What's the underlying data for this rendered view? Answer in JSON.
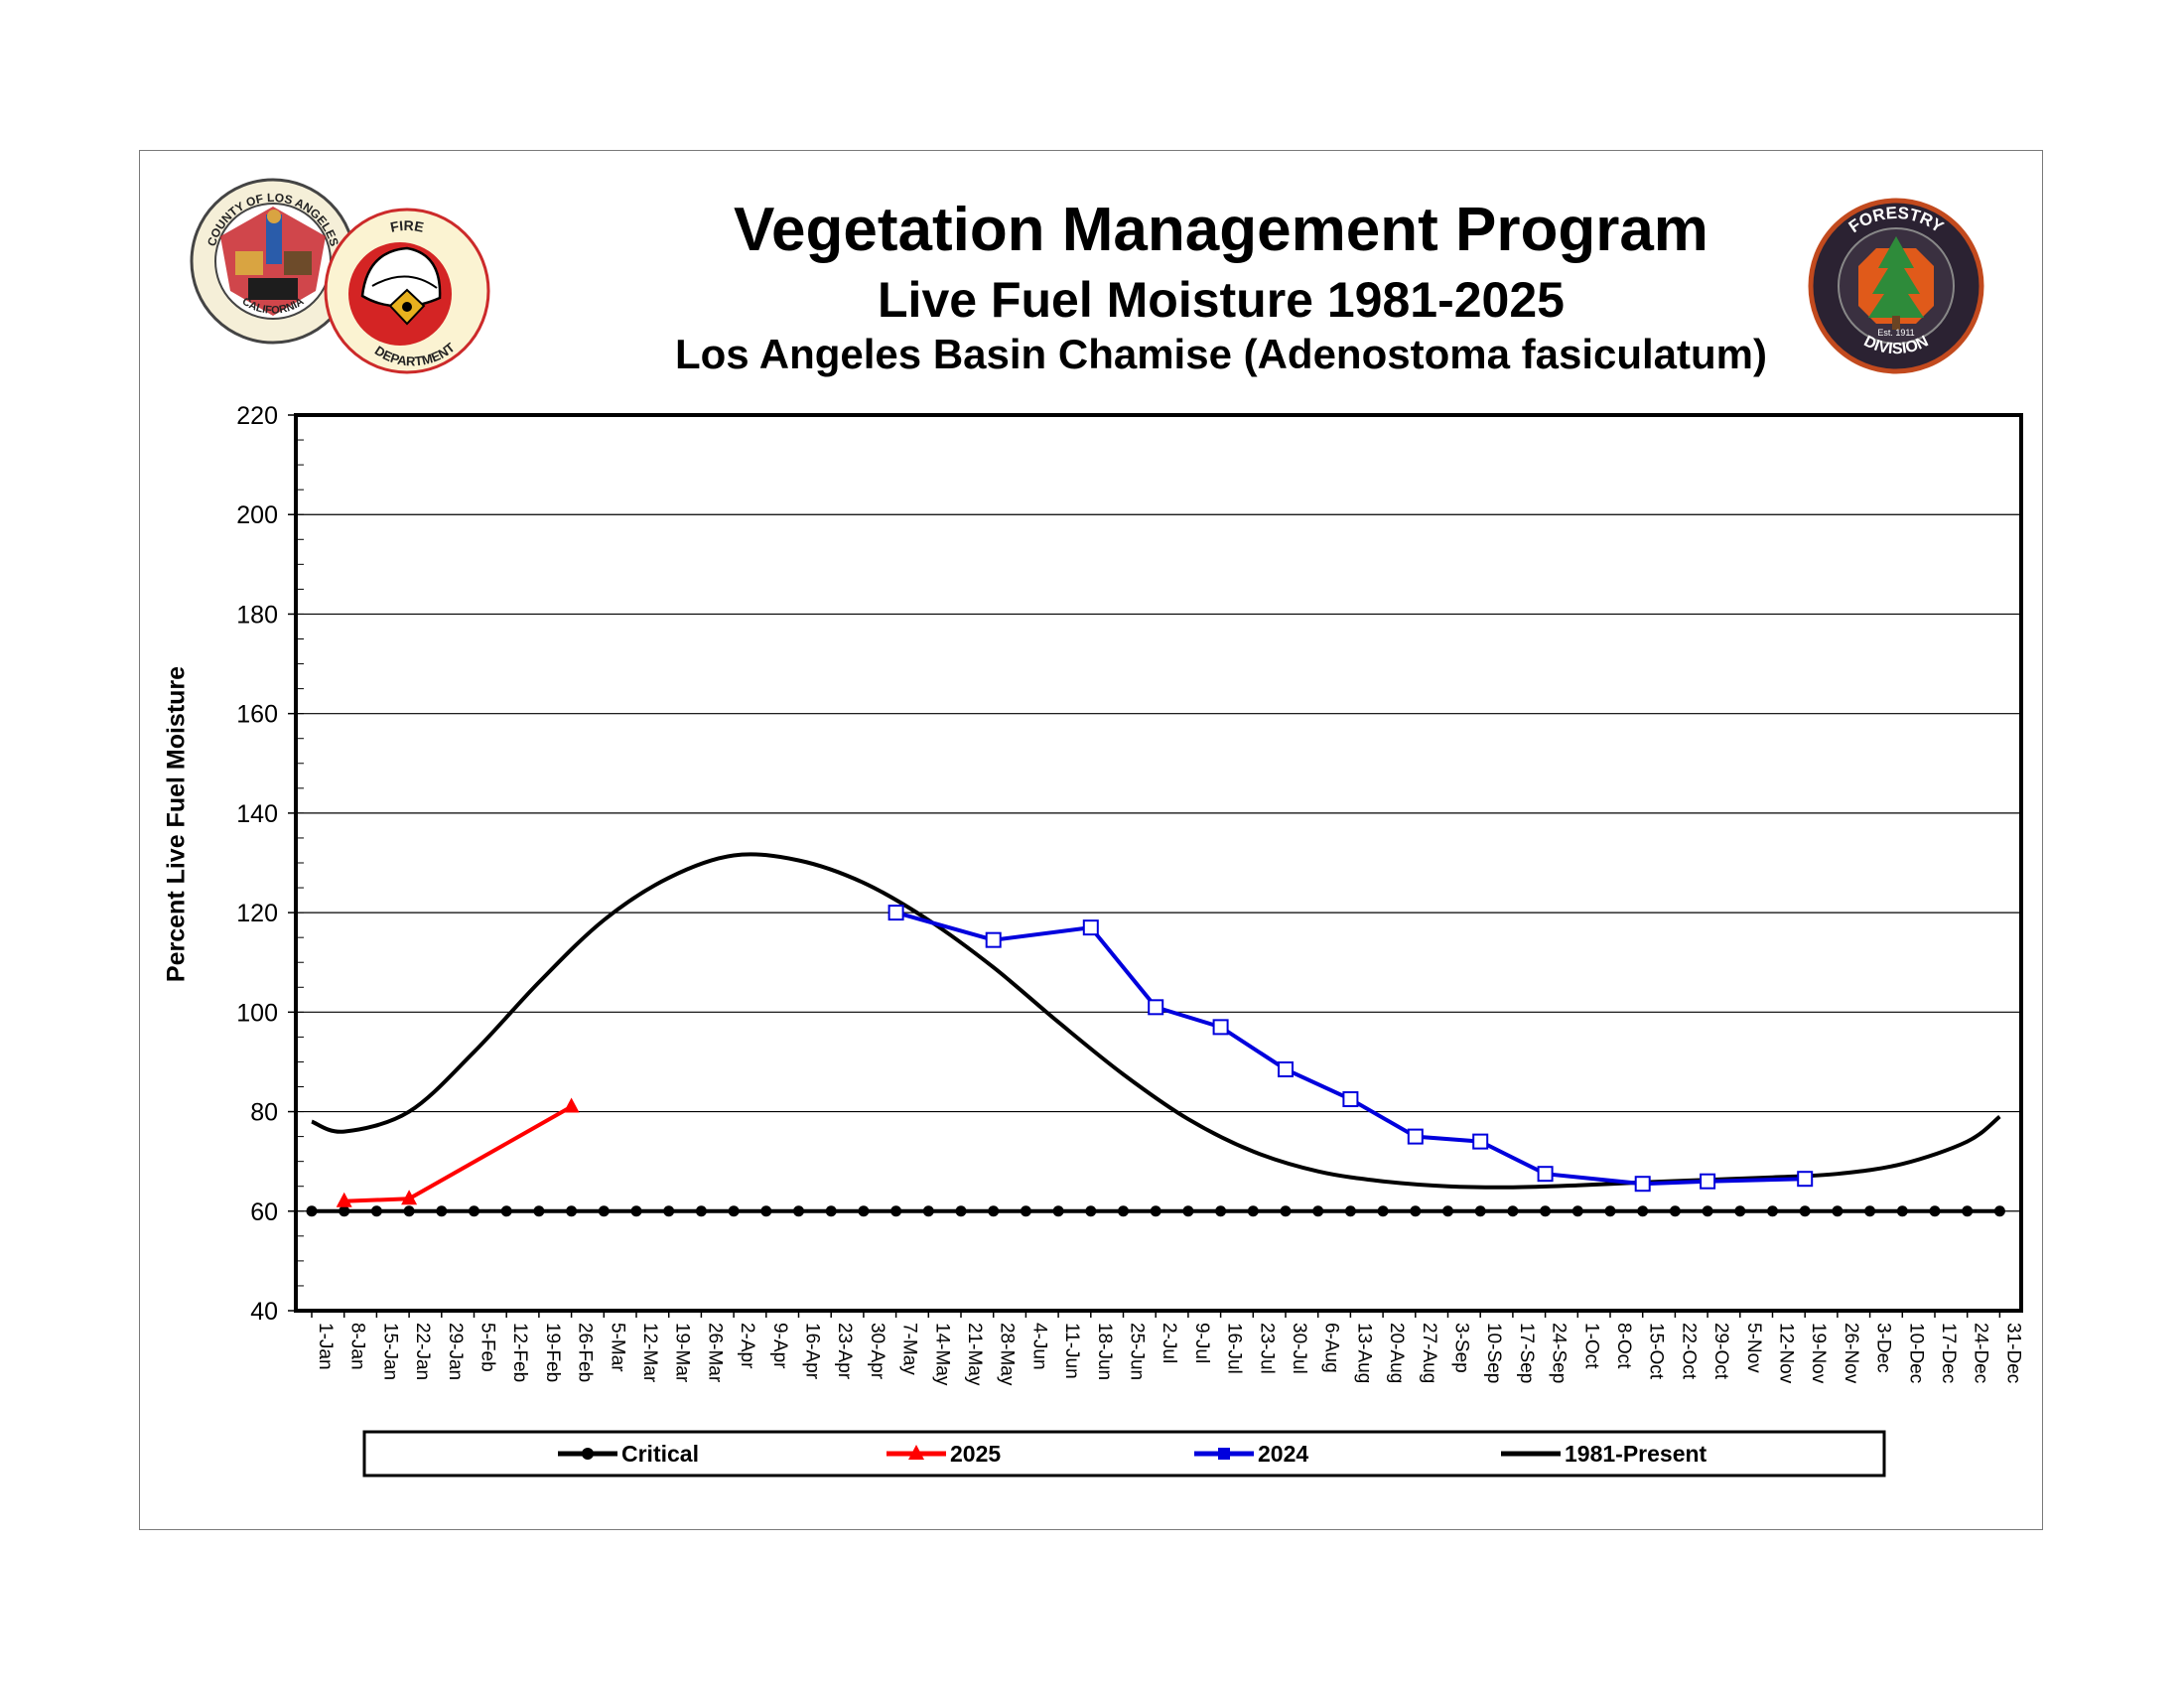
{
  "header": {
    "title": "Vegetation Management Program",
    "subtitle": "Live Fuel Moisture 1981-2025",
    "species": "Los Angeles Basin Chamise (Adenostoma fasiculatum)"
  },
  "logos": {
    "county_seal": {
      "top_text": "COUNTY OF LOS ANGELES",
      "bottom_text": "CALIFORNIA"
    },
    "fire_dept": {
      "top_text": "FIRE",
      "bottom_text": "DEPARTMENT"
    },
    "forestry": {
      "top_text": "FORESTRY",
      "bottom_text": "DIVISION",
      "est": "Est. 1911"
    }
  },
  "colors": {
    "critical": "#000000",
    "y2025": "#ff0000",
    "y2024": "#0000dd",
    "average": "#000000"
  },
  "chart_data": {
    "type": "line",
    "ylabel": "Percent Live Fuel Moisture",
    "xlabel": "",
    "ylim": [
      40,
      220
    ],
    "yticks": [
      40,
      60,
      80,
      100,
      120,
      140,
      160,
      180,
      200,
      220
    ],
    "grid": true,
    "legend_position": "bottom",
    "categories": [
      "1-Jan",
      "8-Jan",
      "15-Jan",
      "22-Jan",
      "29-Jan",
      "5-Feb",
      "12-Feb",
      "19-Feb",
      "26-Feb",
      "5-Mar",
      "12-Mar",
      "19-Mar",
      "26-Mar",
      "2-Apr",
      "9-Apr",
      "16-Apr",
      "23-Apr",
      "30-Apr",
      "7-May",
      "14-May",
      "21-May",
      "28-May",
      "4-Jun",
      "11-Jun",
      "18-Jun",
      "25-Jun",
      "2-Jul",
      "9-Jul",
      "16-Jul",
      "23-Jul",
      "30-Jul",
      "6-Aug",
      "13-Aug",
      "20-Aug",
      "27-Aug",
      "3-Sep",
      "10-Sep",
      "17-Sep",
      "24-Sep",
      "1-Oct",
      "8-Oct",
      "15-Oct",
      "22-Oct",
      "29-Oct",
      "5-Nov",
      "12-Nov",
      "19-Nov",
      "26-Nov",
      "3-Dec",
      "10-Dec",
      "17-Dec",
      "24-Dec",
      "31-Dec"
    ],
    "series": [
      {
        "name": "Critical",
        "marker": "circle",
        "color": "#000000",
        "values": [
          60,
          60,
          60,
          60,
          60,
          60,
          60,
          60,
          60,
          60,
          60,
          60,
          60,
          60,
          60,
          60,
          60,
          60,
          60,
          60,
          60,
          60,
          60,
          60,
          60,
          60,
          60,
          60,
          60,
          60,
          60,
          60,
          60,
          60,
          60,
          60,
          60,
          60,
          60,
          60,
          60,
          60,
          60,
          60,
          60,
          60,
          60,
          60,
          60,
          60,
          60,
          60,
          60
        ]
      },
      {
        "name": "2025",
        "marker": "triangle",
        "color": "#ff0000",
        "points": [
          {
            "x": "8-Jan",
            "y": 62
          },
          {
            "x": "22-Jan",
            "y": 62.5
          },
          {
            "x": "26-Feb",
            "y": 81
          }
        ]
      },
      {
        "name": "2024",
        "marker": "square",
        "color": "#0000dd",
        "points": [
          {
            "x": "7-May",
            "y": 120
          },
          {
            "x": "28-May",
            "y": 114.5
          },
          {
            "x": "18-Jun",
            "y": 117
          },
          {
            "x": "2-Jul",
            "y": 101
          },
          {
            "x": "16-Jul",
            "y": 97
          },
          {
            "x": "30-Jul",
            "y": 88.5
          },
          {
            "x": "13-Aug",
            "y": 82.5
          },
          {
            "x": "27-Aug",
            "y": 75
          },
          {
            "x": "10-Sep",
            "y": 74
          },
          {
            "x": "24-Sep",
            "y": 67.5
          },
          {
            "x": "15-Oct",
            "y": 65.5
          },
          {
            "x": "29-Oct",
            "y": 66
          },
          {
            "x": "19-Nov",
            "y": 66.5
          }
        ]
      },
      {
        "name": "1981-Present",
        "marker": "none",
        "color": "#000000",
        "smooth": true,
        "points": [
          {
            "x": "1-Jan",
            "y": 78
          },
          {
            "x": "8-Jan",
            "y": 76
          },
          {
            "x": "22-Jan",
            "y": 80
          },
          {
            "x": "5-Feb",
            "y": 92
          },
          {
            "x": "19-Feb",
            "y": 106
          },
          {
            "x": "5-Mar",
            "y": 118.5
          },
          {
            "x": "19-Mar",
            "y": 127
          },
          {
            "x": "2-Apr",
            "y": 131.5
          },
          {
            "x": "16-Apr",
            "y": 130.5
          },
          {
            "x": "30-Apr",
            "y": 126
          },
          {
            "x": "14-May",
            "y": 118.5
          },
          {
            "x": "28-May",
            "y": 109
          },
          {
            "x": "11-Jun",
            "y": 98
          },
          {
            "x": "25-Jun",
            "y": 87.5
          },
          {
            "x": "9-Jul",
            "y": 78.5
          },
          {
            "x": "23-Jul",
            "y": 72
          },
          {
            "x": "6-Aug",
            "y": 68
          },
          {
            "x": "20-Aug",
            "y": 66
          },
          {
            "x": "3-Sep",
            "y": 65
          },
          {
            "x": "17-Sep",
            "y": 64.8
          },
          {
            "x": "1-Oct",
            "y": 65.2
          },
          {
            "x": "15-Oct",
            "y": 65.8
          },
          {
            "x": "29-Oct",
            "y": 66.3
          },
          {
            "x": "12-Nov",
            "y": 66.8
          },
          {
            "x": "26-Nov",
            "y": 67.5
          },
          {
            "x": "10-Dec",
            "y": 69.5
          },
          {
            "x": "24-Dec",
            "y": 74
          },
          {
            "x": "31-Dec",
            "y": 79
          }
        ]
      }
    ]
  }
}
